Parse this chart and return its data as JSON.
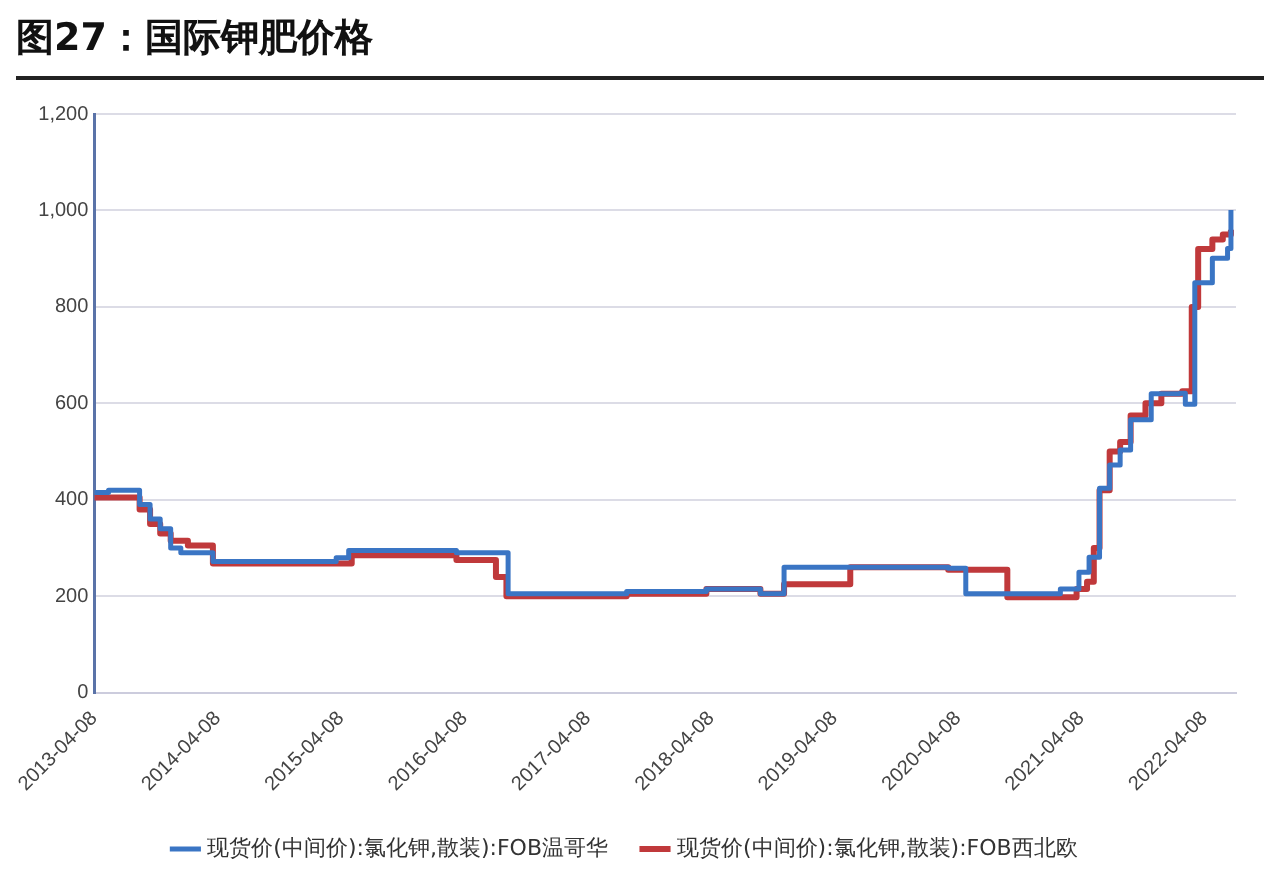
{
  "chart_data": {
    "type": "step",
    "title": "图27：国际钾肥价格",
    "xlim": [
      "2013-04-08",
      "2022-07-10"
    ],
    "xticks": [
      "2013-04-08",
      "2014-04-08",
      "2015-04-08",
      "2016-04-08",
      "2017-04-08",
      "2018-04-08",
      "2019-04-08",
      "2020-04-08",
      "2021-04-08",
      "2022-04-08"
    ],
    "ylim": [
      0,
      1200
    ],
    "yticks": [
      0,
      200,
      400,
      600,
      800,
      {
        "value": 1000,
        "label": "1,000"
      },
      {
        "value": 1200,
        "label": "1,200"
      }
    ],
    "grid": "y",
    "legend": "bottom",
    "marker": "none",
    "series": [
      {
        "name": "现货价(中间价):氯化钾,散装):FOB温哥华",
        "color": "#3a75c4",
        "x": [
          "2013-04-08",
          "2013-05-20",
          "2013-08-20",
          "2013-09-20",
          "2013-10-20",
          "2013-11-20",
          "2013-12-20",
          "2014-03-25",
          "2015-03-25",
          "2015-05-01",
          "2016-03-15",
          "2016-08-15",
          "2017-08-01",
          "2018-03-25",
          "2018-09-01",
          "2018-11-10",
          "2020-03-10",
          "2020-05-01",
          "2021-02-05",
          "2021-04-01",
          "2021-05-01",
          "2021-06-01",
          "2021-07-01",
          "2021-08-01",
          "2021-09-01",
          "2021-11-01",
          "2022-01-25",
          "2022-02-10",
          "2022-03-10",
          "2022-05-01",
          "2022-06-15",
          "2022-06-25"
        ],
        "values": [
          415,
          420,
          390,
          360,
          340,
          300,
          290,
          272,
          280,
          295,
          290,
          205,
          210,
          215,
          205,
          260,
          258,
          205,
          215,
          250,
          281,
          424,
          472,
          503,
          566,
          620,
          621,
          598,
          850,
          901,
          921,
          1001
        ]
      },
      {
        "name": "现货价(中间价):氯化钾,散装):FOB西北欧",
        "color": "#c0393b",
        "x": [
          "2013-04-08",
          "2013-08-20",
          "2013-09-20",
          "2013-10-20",
          "2013-11-20",
          "2014-01-10",
          "2014-03-25",
          "2015-05-10",
          "2016-03-15",
          "2016-07-10",
          "2016-08-10",
          "2017-08-01",
          "2018-03-25",
          "2018-09-01",
          "2018-11-10",
          "2019-05-25",
          "2020-03-10",
          "2020-09-01",
          "2021-03-25",
          "2021-04-25",
          "2021-05-15",
          "2021-06-01",
          "2021-07-01",
          "2021-08-01",
          "2021-09-01",
          "2021-10-15",
          "2021-12-01",
          "2022-02-01",
          "2022-03-01",
          "2022-03-20",
          "2022-05-01",
          "2022-06-01",
          "2022-06-25"
        ],
        "values": [
          405,
          380,
          350,
          330,
          315,
          305,
          268,
          285,
          275,
          240,
          200,
          205,
          215,
          205,
          225,
          260,
          255,
          198,
          215,
          230,
          300,
          420,
          500,
          520,
          575,
          600,
          620,
          625,
          800,
          920,
          940,
          950,
          960
        ]
      }
    ]
  }
}
